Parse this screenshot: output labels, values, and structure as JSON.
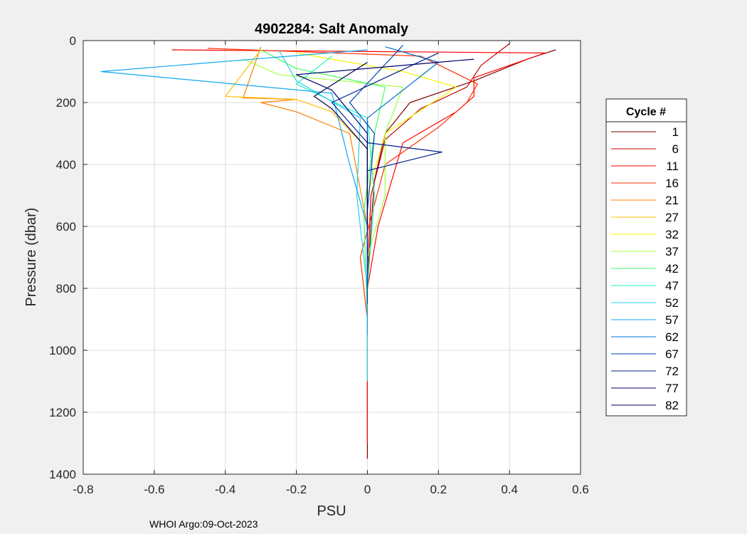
{
  "chart_data": {
    "type": "line",
    "title": "4902284: Salt Anomaly",
    "xlabel": "PSU",
    "ylabel": "Pressure (dbar)",
    "xlim": [
      -0.8,
      0.6
    ],
    "ylim": [
      0,
      1400
    ],
    "y_reversed": true,
    "xticks": [
      -0.8,
      -0.6,
      -0.4,
      -0.2,
      0,
      0.2,
      0.4,
      0.6
    ],
    "xtick_labels": [
      "-0.8",
      "-0.6",
      "-0.4",
      "-0.2",
      "0",
      "0.2",
      "0.4",
      "0.6"
    ],
    "yticks": [
      0,
      200,
      400,
      600,
      800,
      1000,
      1200,
      1400
    ],
    "ytick_labels": [
      "0",
      "200",
      "400",
      "600",
      "800",
      "1000",
      "1200",
      "1400"
    ],
    "grid": true,
    "legend": {
      "title": "Cycle #",
      "placement": "right-outside",
      "entries": [
        {
          "label": "1",
          "color": "#800000"
        },
        {
          "label": "6",
          "color": "#c00000"
        },
        {
          "label": "11",
          "color": "#ff0000"
        },
        {
          "label": "16",
          "color": "#ff3000"
        },
        {
          "label": "21",
          "color": "#ff8000"
        },
        {
          "label": "27",
          "color": "#ffc000"
        },
        {
          "label": "32",
          "color": "#f5f500"
        },
        {
          "label": "37",
          "color": "#a0ff40"
        },
        {
          "label": "42",
          "color": "#40ff60"
        },
        {
          "label": "47",
          "color": "#20f0c0"
        },
        {
          "label": "52",
          "color": "#20d0f0"
        },
        {
          "label": "57",
          "color": "#10a8f0"
        },
        {
          "label": "62",
          "color": "#0070d0"
        },
        {
          "label": "67",
          "color": "#0040b0"
        },
        {
          "label": "72",
          "color": "#002090"
        },
        {
          "label": "77",
          "color": "#000070"
        },
        {
          "label": "82",
          "color": "#000050"
        }
      ]
    },
    "series": [
      {
        "name": "1",
        "color": "#800000",
        "x": [
          0.53,
          0.45,
          0.3,
          0.12,
          0.05,
          0.02,
          0.01,
          0.0,
          0.0,
          0.0
        ],
        "y": [
          30,
          60,
          130,
          200,
          300,
          450,
          600,
          800,
          1000,
          1350
        ]
      },
      {
        "name": "6",
        "color": "#c00000",
        "x": [
          0.4,
          0.32,
          0.28,
          0.15,
          0.05,
          0.01,
          0.0,
          0.0
        ],
        "y": [
          10,
          80,
          150,
          220,
          320,
          500,
          750,
          950
        ]
      },
      {
        "name": "11",
        "color": "#ff0000",
        "x": [
          -0.55,
          0.5,
          0.3,
          0.3,
          0.25,
          0.1,
          0.03,
          0.0,
          0.0
        ],
        "y": [
          30,
          40,
          120,
          180,
          230,
          330,
          600,
          800,
          1300
        ]
      },
      {
        "name": "16",
        "color": "#ff3000",
        "x": [
          -0.45,
          0.15,
          0.31,
          0.28,
          0.2,
          0.05,
          -0.02,
          0.0
        ],
        "y": [
          25,
          50,
          140,
          200,
          280,
          400,
          700,
          900
        ]
      },
      {
        "name": "21",
        "color": "#ff8000",
        "x": [
          -0.3,
          -0.35,
          -0.2,
          -0.3,
          -0.2,
          -0.05,
          0.0,
          0.0
        ],
        "y": [
          20,
          185,
          190,
          200,
          230,
          300,
          600,
          900
        ]
      },
      {
        "name": "27",
        "color": "#ffc000",
        "x": [
          -0.3,
          -0.4,
          -0.2,
          -0.1,
          0.0,
          0.0,
          0.0
        ],
        "y": [
          30,
          180,
          190,
          230,
          350,
          600,
          900
        ]
      },
      {
        "name": "32",
        "color": "#f5f500",
        "x": [
          -0.2,
          0.1,
          0.25,
          0.05,
          0.0,
          0.0
        ],
        "y": [
          40,
          100,
          150,
          300,
          500,
          800
        ]
      },
      {
        "name": "37",
        "color": "#a0ff40",
        "x": [
          -0.35,
          -0.25,
          0.1,
          0.05,
          0.05,
          0.0,
          0.0
        ],
        "y": [
          60,
          110,
          150,
          300,
          500,
          700,
          1100
        ]
      },
      {
        "name": "42",
        "color": "#40ff60",
        "x": [
          -0.3,
          -0.2,
          0.05,
          0.02,
          -0.01,
          0.0
        ],
        "y": [
          30,
          90,
          150,
          300,
          550,
          900
        ]
      },
      {
        "name": "47",
        "color": "#20f0c0",
        "x": [
          -0.1,
          -0.2,
          0.0,
          0.02,
          0.0
        ],
        "y": [
          50,
          140,
          250,
          500,
          800
        ]
      },
      {
        "name": "52",
        "color": "#20d0f0",
        "x": [
          -0.25,
          -0.2,
          -0.02,
          -0.03,
          0.0,
          0.0
        ],
        "y": [
          30,
          130,
          250,
          500,
          800,
          1100
        ]
      },
      {
        "name": "57",
        "color": "#10a8f0",
        "x": [
          0.0,
          -0.75,
          -0.1,
          -0.05,
          0.0,
          0.0
        ],
        "y": [
          30,
          100,
          170,
          400,
          600,
          950
        ]
      },
      {
        "name": "62",
        "color": "#0070d0",
        "x": [
          0.05,
          0.2,
          0.0,
          0.0,
          0.0
        ],
        "y": [
          20,
          70,
          250,
          500,
          800
        ]
      },
      {
        "name": "67",
        "color": "#0040b0",
        "x": [
          0.1,
          -0.05,
          0.02,
          0.0,
          0.0
        ],
        "y": [
          15,
          200,
          300,
          550,
          850
        ]
      },
      {
        "name": "72",
        "color": "#002090",
        "x": [
          0.2,
          -0.1,
          0.0,
          0.21,
          0.0,
          0.0
        ],
        "y": [
          40,
          200,
          330,
          360,
          420,
          700
        ]
      },
      {
        "name": "77",
        "color": "#000070",
        "x": [
          0.3,
          -0.2,
          -0.1,
          0.0,
          0.0
        ],
        "y": [
          60,
          110,
          160,
          300,
          600
        ]
      },
      {
        "name": "82",
        "color": "#000050",
        "x": [
          0.0,
          -0.15,
          -0.1,
          0.0,
          0.0
        ],
        "y": [
          70,
          180,
          220,
          350,
          600
        ]
      }
    ]
  },
  "footnote": "WHOI Argo:09-Oct-2023"
}
